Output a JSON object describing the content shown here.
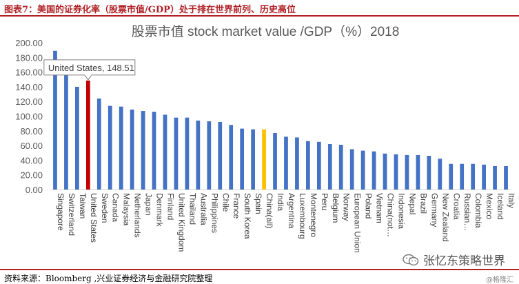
{
  "figure": {
    "caption": "图表7：美国的证券化率（股票市值/GDP）处于排在世界前列、历史高位",
    "source": "资料来源：Bloomberg ,兴业证券经济与金融研究院整理"
  },
  "watermark": {
    "text": "张忆东策略世界",
    "sub": "@格隆汇",
    "icon": "wechat-icon"
  },
  "colors": {
    "bar": "#4472C4",
    "highlight_us": "#C00000",
    "highlight_china": "#FFC000",
    "frame": "#b01f24"
  },
  "chart_data": {
    "type": "bar",
    "title": "股票市值 stock market value /GDP（%）2018",
    "ylim": [
      0,
      200
    ],
    "yticks": [
      "0.00",
      "20.00",
      "40.00",
      "60.00",
      "80.00",
      "100.00",
      "120.00",
      "140.00",
      "160.00",
      "180.00",
      "200.00"
    ],
    "grid": false,
    "categories": [
      "Singapore",
      "Switzerland",
      "Taiwan",
      "United States",
      "Sweden",
      "Canada",
      "Malaysia",
      "Netherlands",
      "Japan",
      "Denmark",
      "Finland",
      "United Kingdom",
      "Thailand",
      "Australia",
      "Philippines",
      "Chile",
      "France",
      "South Korea",
      "Spain",
      "China(all)",
      "India",
      "Argentina",
      "Luxembourg",
      "Montenegro",
      "Peru",
      "Belgium",
      "Norway",
      "European Union",
      "Poland",
      "Vietnam",
      "China(not…",
      "Indonesia",
      "Nepal",
      "Brazil",
      "Germany",
      "New Zealand",
      "Croatia",
      "Russian…",
      "Colombia",
      "Mexico",
      "Iceland",
      "Italy"
    ],
    "values": [
      189,
      176,
      140,
      148.51,
      124,
      114,
      113,
      109,
      107,
      106,
      102,
      98,
      98,
      94,
      93,
      92,
      88,
      83,
      82,
      82,
      77,
      72,
      71,
      66,
      65,
      62,
      61,
      55,
      53,
      52,
      49,
      48,
      47,
      47,
      46,
      42,
      35,
      35,
      35,
      34,
      32,
      32
    ],
    "highlight": {
      "United States": "highlight_us",
      "China(all)": "highlight_china"
    },
    "tooltip": {
      "category": "United States",
      "text": "United States, 148.51"
    }
  }
}
